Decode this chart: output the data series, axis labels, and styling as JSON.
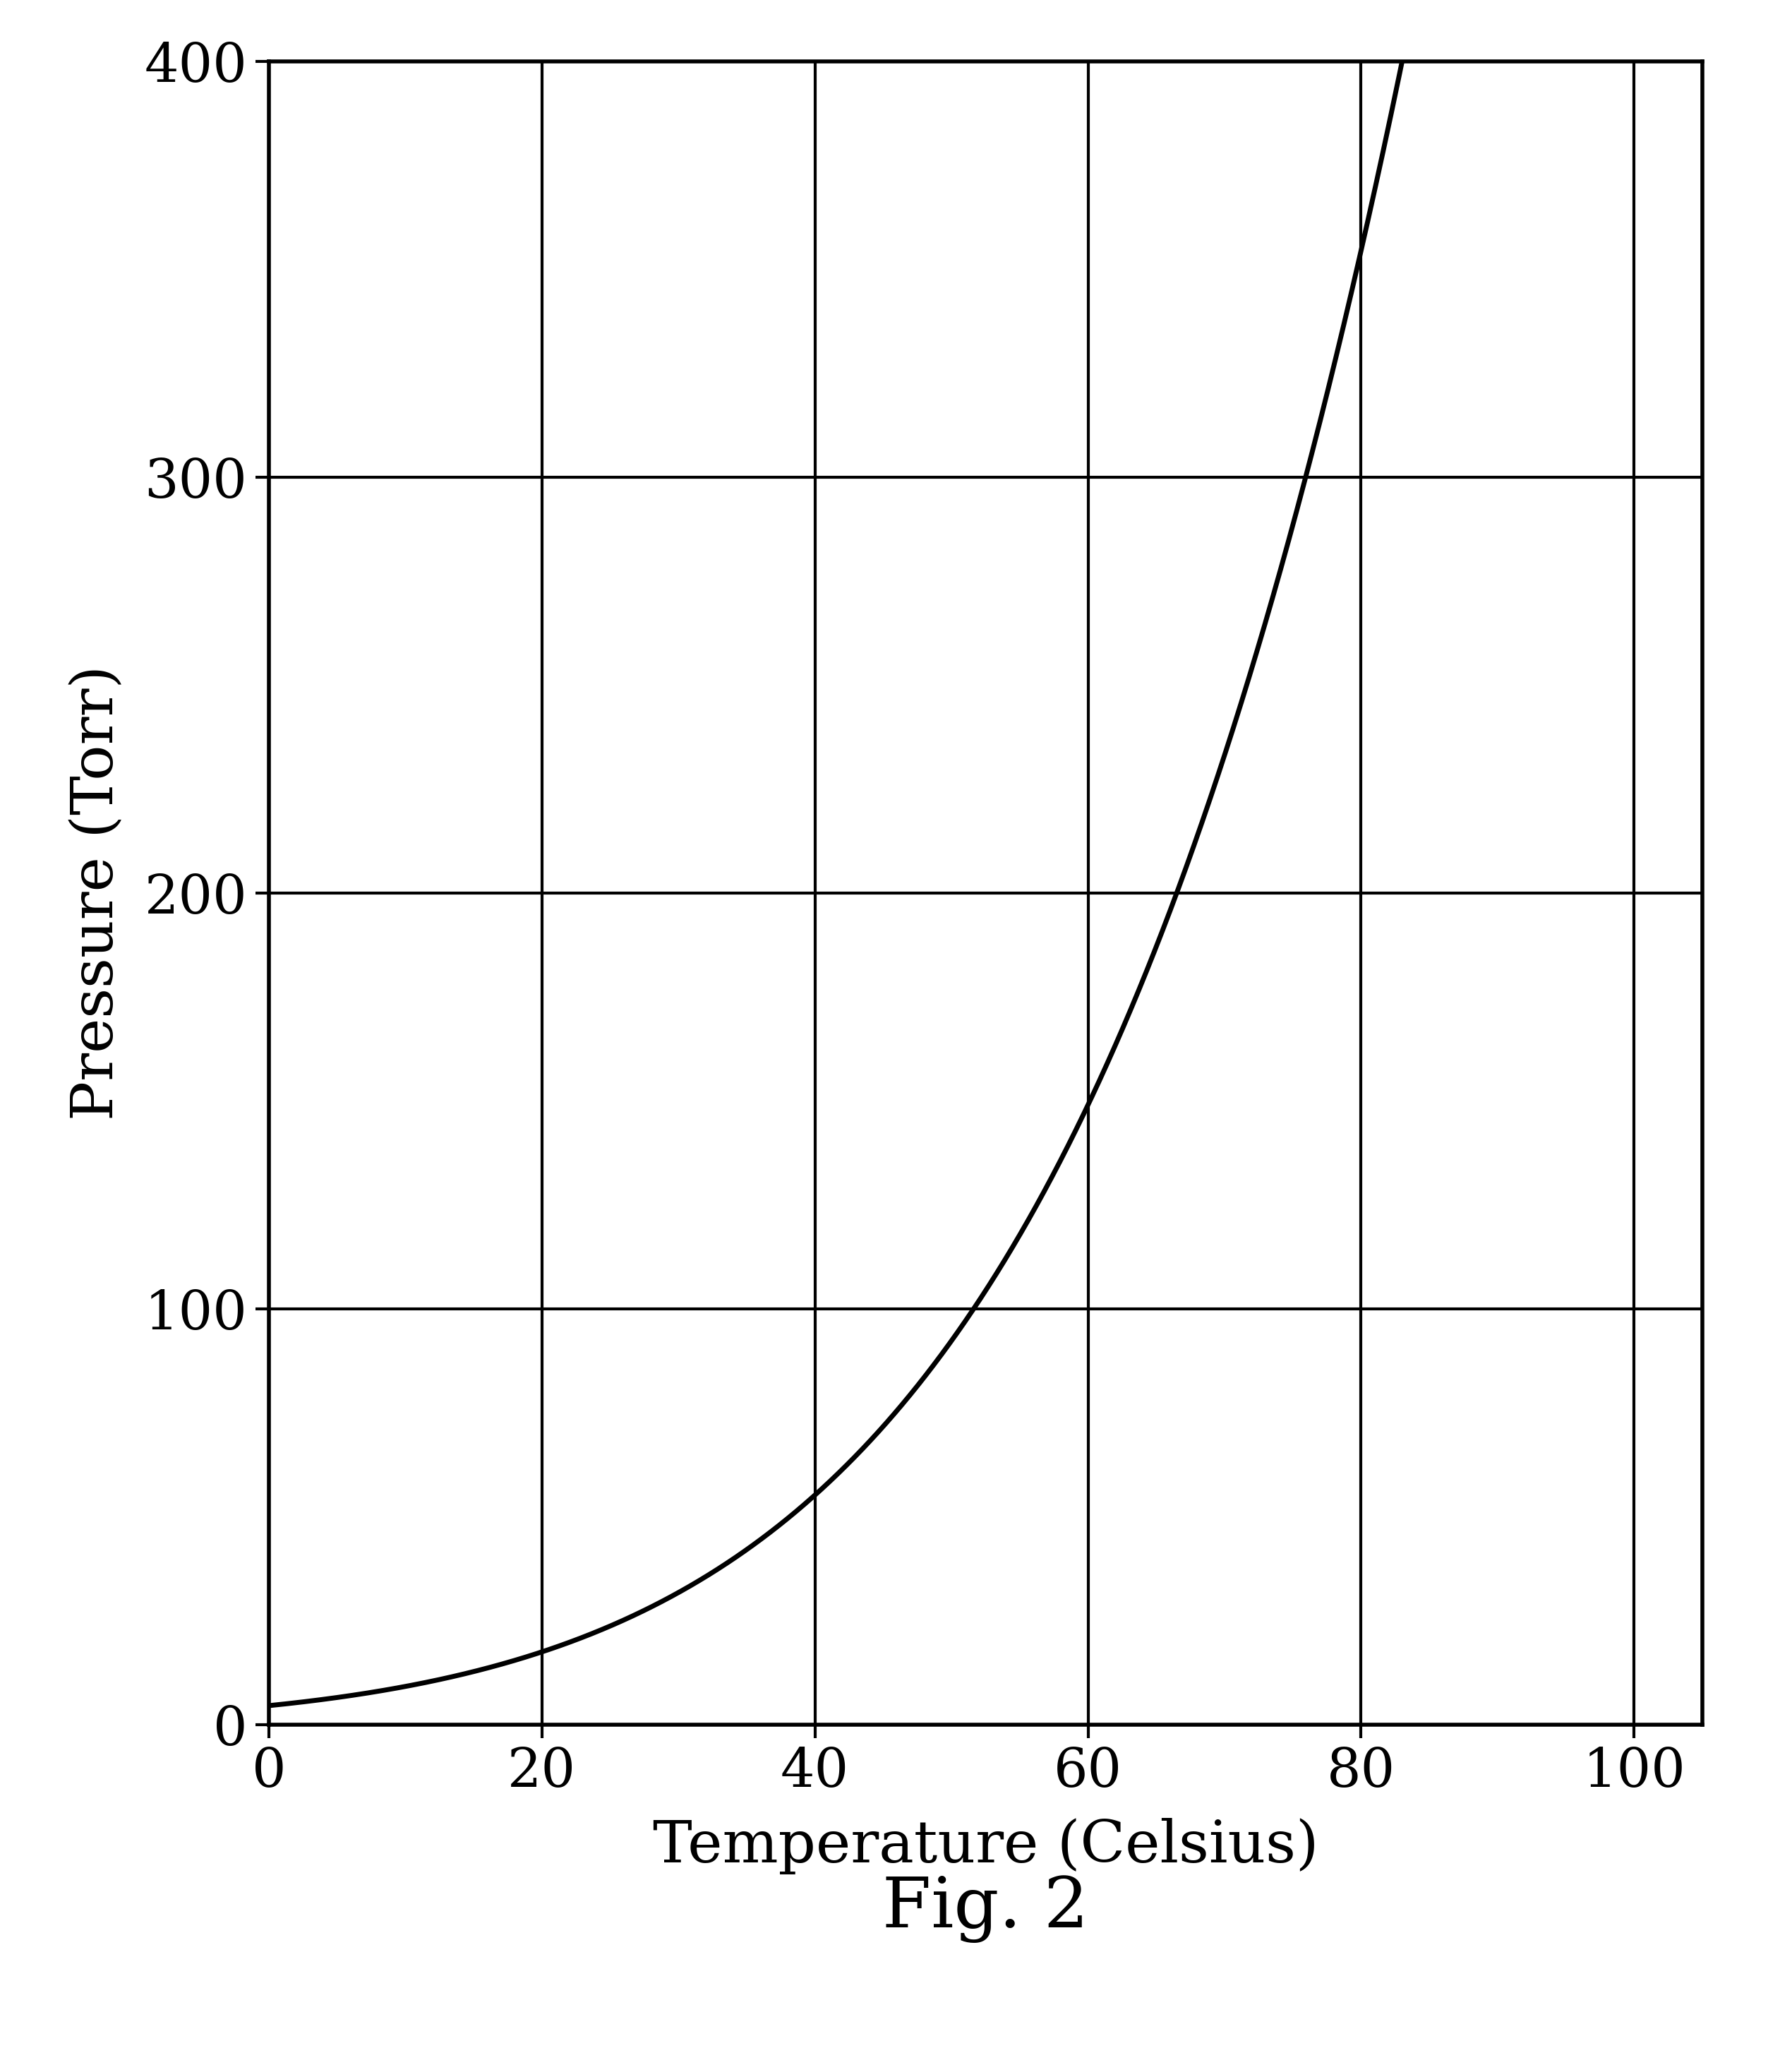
{
  "title": "Fig. 2",
  "xlabel": "Temperature (Celsius)",
  "ylabel": "Pressure (Torr)",
  "xlim": [
    0,
    105
  ],
  "ylim": [
    0,
    400
  ],
  "xticks": [
    0,
    20,
    40,
    60,
    80,
    100
  ],
  "yticks": [
    0,
    100,
    200,
    300,
    400
  ],
  "line_color": "#000000",
  "line_width": 5.0,
  "background_color": "#ffffff",
  "grid_color": "#000000",
  "fig_caption": "Fig. 2",
  "caption_fontsize": 72,
  "axis_label_fontsize": 60,
  "tick_fontsize": 55,
  "antoine_A": 8.07131,
  "antoine_B": 1730.63,
  "antoine_C": 233.426
}
